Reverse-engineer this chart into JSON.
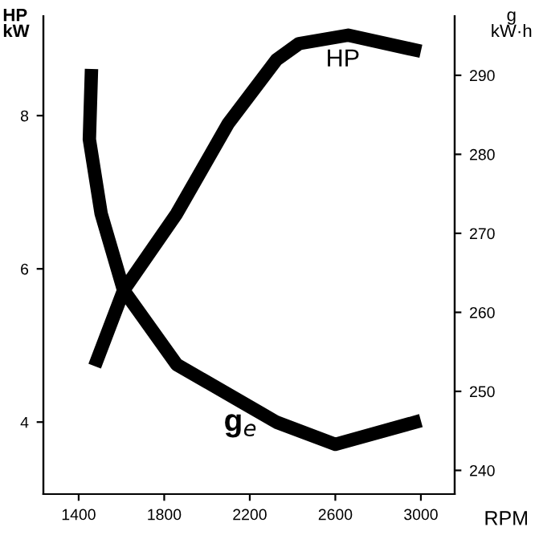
{
  "chart_data": {
    "type": "line",
    "xlabel": "RPM",
    "ylabel": "HP\nkW",
    "y2label": "g\nkW·h",
    "xlim": [
      1235,
      3158
    ],
    "xticks": [
      1400,
      1800,
      2200,
      2600,
      3000
    ],
    "ylim": [
      3.06,
      9.3
    ],
    "yticks": [
      4,
      6,
      8
    ],
    "y2lim": [
      237,
      297.5
    ],
    "y2ticks": [
      240,
      250,
      260,
      270,
      280,
      290
    ],
    "grid": false,
    "legend": false,
    "marker": "none",
    "line_style": "solid",
    "series": [
      {
        "name": "HP",
        "color": "#000000",
        "axis": "y",
        "x": [
          1475,
          1610,
          1858,
          2100,
          2325,
          2430,
          2660,
          3000
        ],
        "values": [
          4.73,
          5.72,
          6.72,
          7.9,
          8.73,
          8.94,
          9.05,
          8.84
        ]
      },
      {
        "name": "g$_{e}$",
        "color": "#000000",
        "axis": "y2",
        "x": [
          1460,
          1450,
          1505,
          1610,
          1858,
          2325,
          2600,
          3000
        ],
        "values": [
          290.8,
          281.9,
          272.5,
          262.8,
          253.4,
          246.1,
          243.3,
          246.3
        ]
      }
    ]
  }
}
